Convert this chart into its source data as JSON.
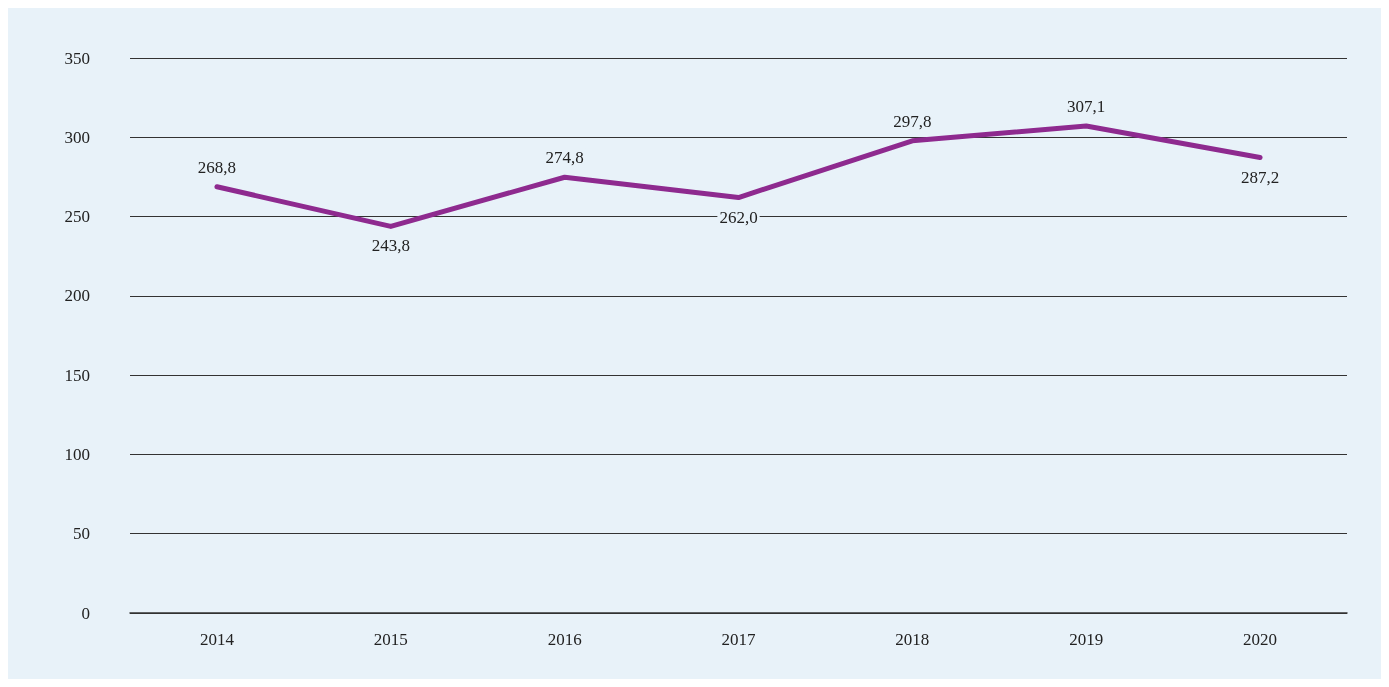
{
  "chart_data": {
    "type": "line",
    "categories": [
      "2014",
      "2015",
      "2016",
      "2017",
      "2018",
      "2019",
      "2020"
    ],
    "series": [
      {
        "color": "#8e2a8f",
        "values": [
          268.8,
          243.8,
          274.8,
          262.0,
          297.8,
          307.1,
          287.2
        ],
        "value_labels": [
          "268,8",
          "243,8",
          "274,8",
          "262,0",
          "297,8",
          "307,1",
          "287,2"
        ]
      }
    ],
    "ylim": [
      0,
      350
    ],
    "yticks": [
      0,
      50,
      100,
      150,
      200,
      250,
      300,
      350
    ],
    "grid": "y",
    "marker": "none"
  }
}
